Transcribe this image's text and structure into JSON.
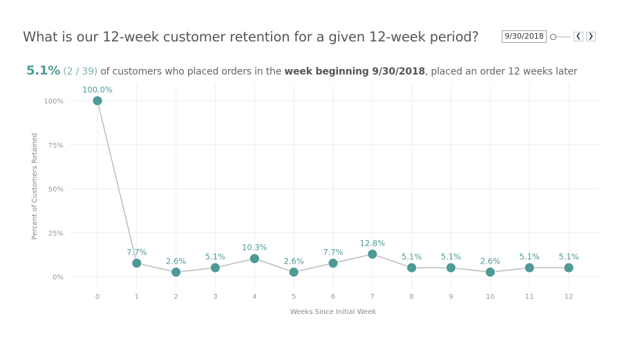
{
  "header": {
    "title": "What is our 12-week customer retention for a given 12-week period?"
  },
  "summary": {
    "percent": "5.1%",
    "ratio": "(2 / 39)",
    "text_1": " of customers who placed orders in the ",
    "week_label": "week beginning 9/30/2018",
    "text_2": ", placed an order 12 weeks later"
  },
  "controls": {
    "date_value": "9/30/2018",
    "prev_icon": "chevron-left-icon",
    "next_icon": "chevron-right-icon",
    "prev_glyph": "❮",
    "next_glyph": "❯"
  },
  "colors": {
    "accent": "#4e9a96",
    "line": "#bbbbbb",
    "grid": "#eeeeee"
  },
  "chart_data": {
    "type": "line",
    "title": "",
    "xlabel": "Weeks Since Initial Week",
    "ylabel": "Percent of Customers Retained",
    "x": [
      0,
      1,
      2,
      3,
      4,
      5,
      6,
      7,
      8,
      9,
      10,
      11,
      12
    ],
    "x_tick_labels": [
      "0",
      "1",
      "2",
      "3",
      "4",
      "5",
      "6",
      "7",
      "8",
      "9",
      "10",
      "11",
      "12"
    ],
    "y_tick_labels": [
      "0%",
      "25%",
      "50%",
      "75%",
      "100%"
    ],
    "y_ticks": [
      0,
      25,
      50,
      75,
      100
    ],
    "ylim": [
      0,
      100
    ],
    "xlim": [
      0,
      12
    ],
    "grid": true,
    "series": [
      {
        "name": "Percent of Customers Retained",
        "values": [
          100.0,
          7.7,
          2.6,
          5.1,
          10.3,
          2.6,
          7.7,
          12.8,
          5.1,
          5.1,
          2.6,
          5.1,
          5.1
        ],
        "labels": [
          "100.0%",
          "7.7%",
          "2.6%",
          "5.1%",
          "10.3%",
          "2.6%",
          "7.7%",
          "12.8%",
          "5.1%",
          "5.1%",
          "2.6%",
          "5.1%",
          "5.1%"
        ]
      }
    ]
  }
}
